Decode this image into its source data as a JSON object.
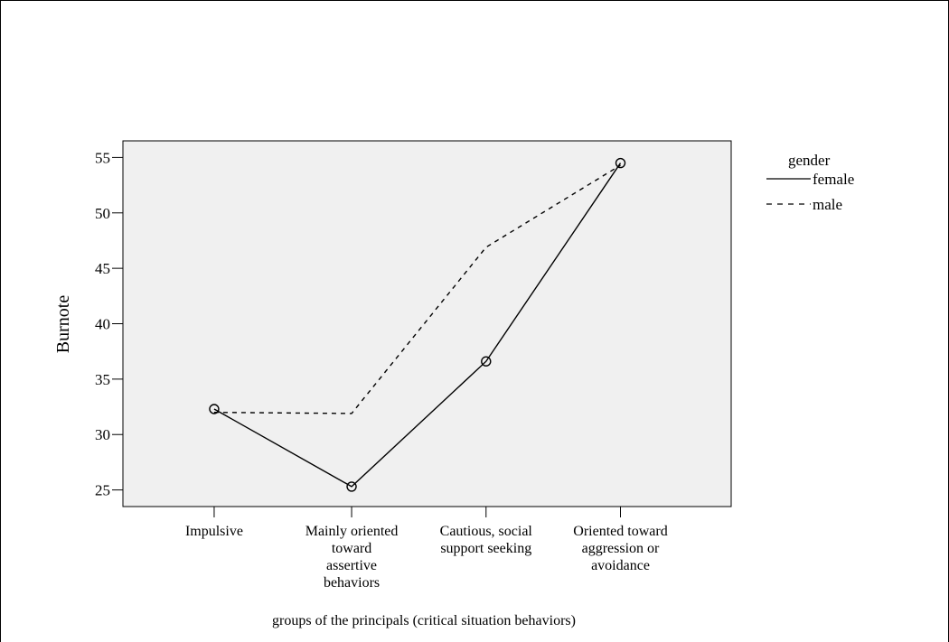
{
  "chart_data": {
    "type": "line",
    "title": "",
    "xlabel": "groups of the principals (critical situation behaviors)",
    "ylabel": "Burnote",
    "ylim": [
      23.5,
      56.5
    ],
    "yticks": [
      25,
      30,
      35,
      40,
      45,
      50,
      55
    ],
    "categories": [
      [
        "Impulsive"
      ],
      [
        "Mainly oriented",
        "toward",
        "assertive",
        "behaviors"
      ],
      [
        "Cautious, social",
        "support seeking"
      ],
      [
        "Oriented toward",
        "aggression or",
        "avoidance"
      ]
    ],
    "legend": {
      "title": "gender",
      "position": "right"
    },
    "series": [
      {
        "name": "female",
        "values": [
          32.3,
          25.3,
          36.6,
          54.5
        ],
        "style": "solid",
        "markers": true
      },
      {
        "name": "male",
        "values": [
          32.0,
          31.9,
          46.9,
          54.3
        ],
        "style": "dashed",
        "markers": false
      }
    ],
    "grid": false,
    "colors": {
      "plot_background": "#f0f0f0",
      "line": "#000000"
    }
  }
}
